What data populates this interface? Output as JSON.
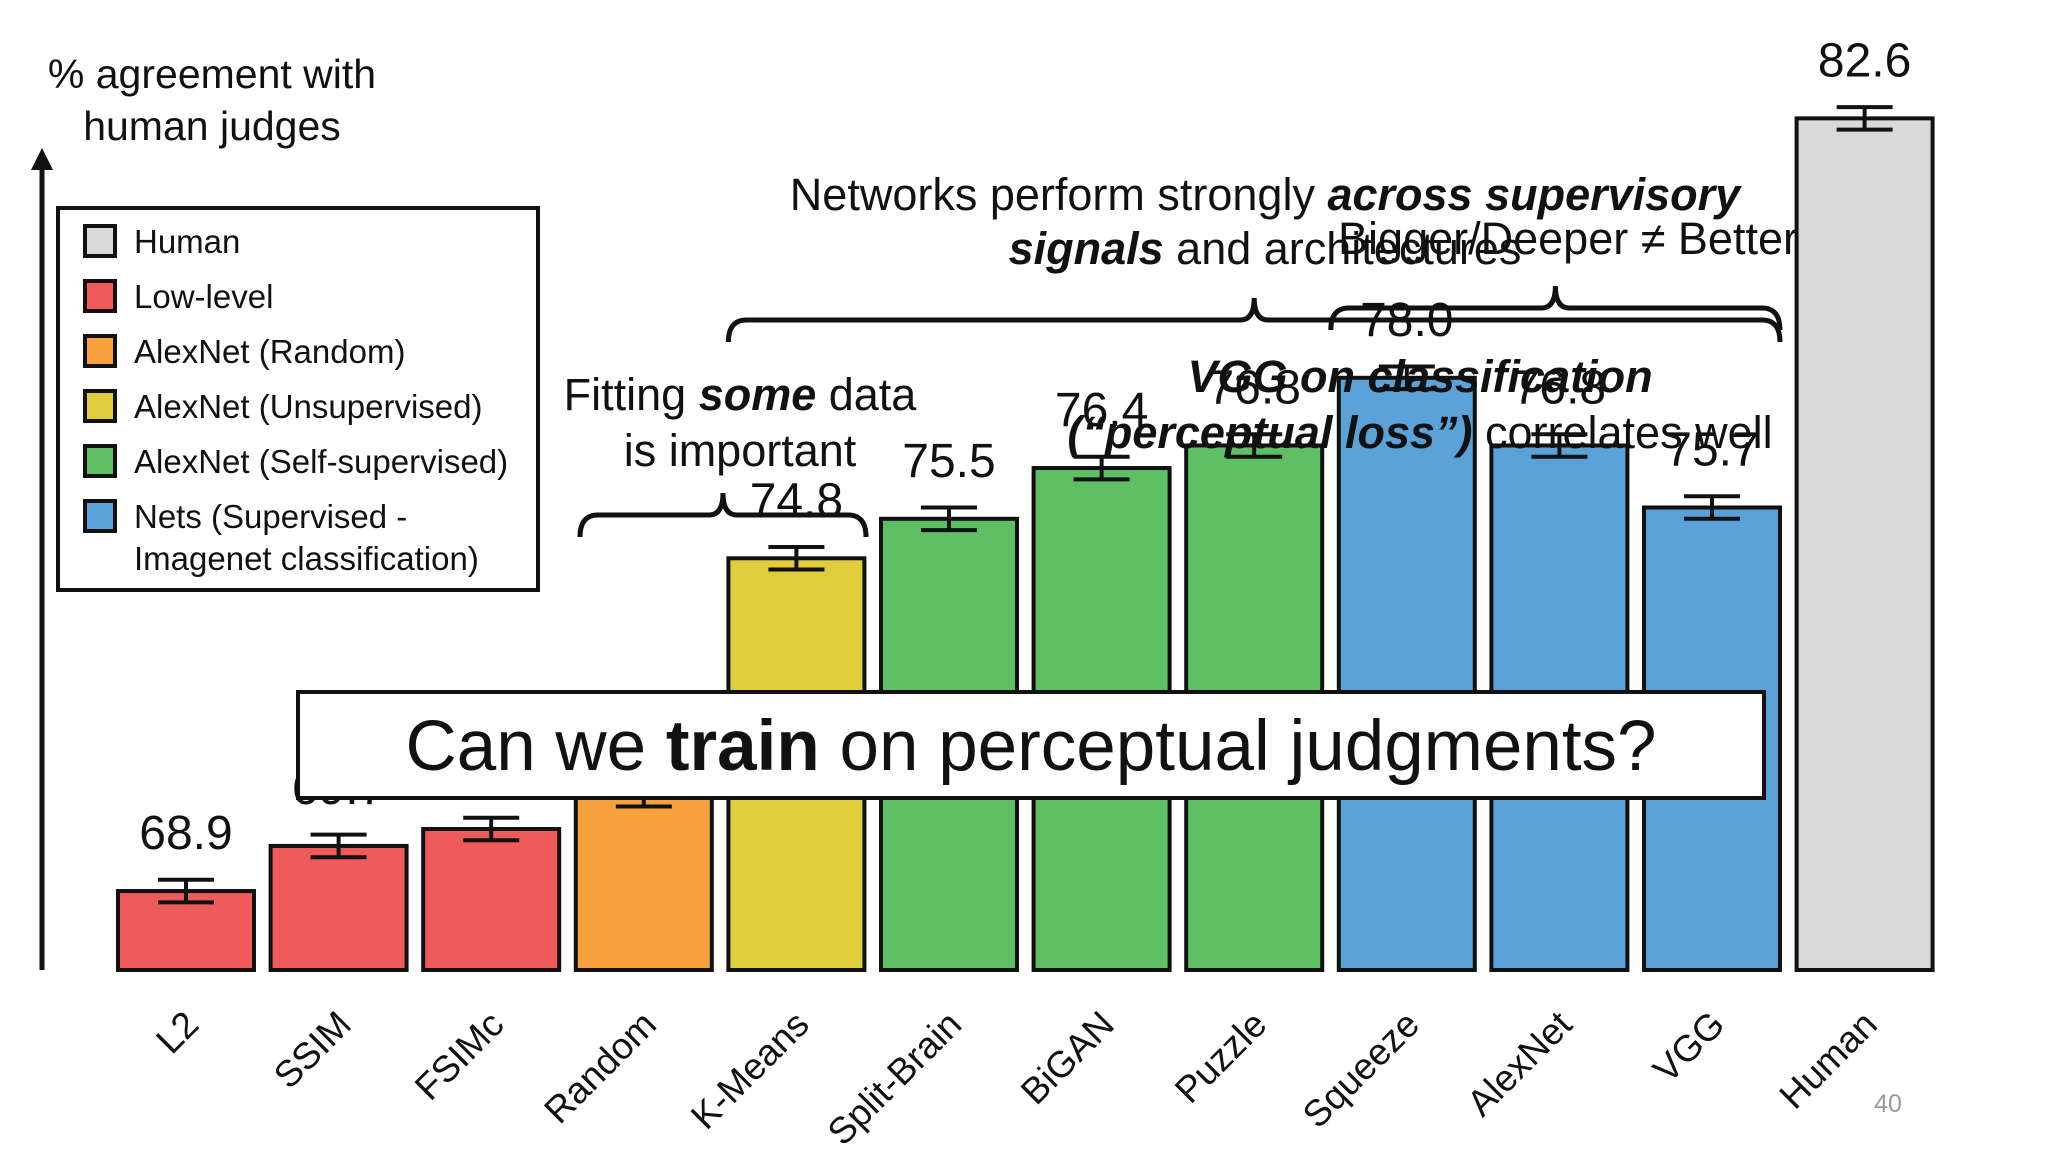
{
  "chart_data": {
    "type": "bar",
    "ylabel": [
      "% agreement with",
      "human judges"
    ],
    "ylim": [
      67.5,
      84
    ],
    "categories": [
      "L2",
      "SSIM",
      "FSIMc",
      "Random",
      "K-Means",
      "Split-Brain",
      "BiGAN",
      "Puzzle",
      "Squeeze",
      "AlexNet",
      "VGG",
      "Human"
    ],
    "values": [
      68.9,
      69.7,
      70.0,
      70.6,
      74.8,
      75.5,
      76.4,
      76.8,
      78.0,
      76.8,
      75.7,
      82.6
    ],
    "value_labels": [
      "68.9",
      "69.7",
      "70.0",
      "70.6",
      "74.8",
      "75.5",
      "76.4",
      "76.8",
      "78.0",
      "76.8",
      "75.7",
      "82.6"
    ],
    "error_bars": [
      0.2,
      0.2,
      0.2,
      0.2,
      0.2,
      0.2,
      0.2,
      0.2,
      0.2,
      0.2,
      0.2,
      0.2
    ],
    "groups": [
      "low-level",
      "low-level",
      "low-level",
      "alexnet-random",
      "alexnet-unsupervised",
      "alexnet-self-supervised",
      "alexnet-self-supervised",
      "alexnet-self-supervised",
      "nets-supervised",
      "nets-supervised",
      "nets-supervised",
      "human"
    ],
    "group_colors": {
      "human": "#d9d9d9",
      "low-level": "#ef5a5a",
      "alexnet-random": "#f8a13c",
      "alexnet-unsupervised": "#dfcd3c",
      "alexnet-self-supervised": "#5fbf64",
      "nets-supervised": "#5aa2d8"
    },
    "legend": {
      "placement": "top-left",
      "entries": [
        {
          "label": "Human",
          "group": "human"
        },
        {
          "label": "Low-level",
          "group": "low-level"
        },
        {
          "label": "AlexNet (Random)",
          "group": "alexnet-random"
        },
        {
          "label": "AlexNet (Unsupervised)",
          "group": "alexnet-unsupervised"
        },
        {
          "label": "AlexNet (Self-supervised)",
          "group": "alexnet-self-supervised"
        },
        {
          "label": [
            "Nets (Supervised -",
            "Imagenet classification)"
          ],
          "group": "nets-supervised"
        }
      ]
    },
    "grid": false,
    "annotations": {
      "fitting": {
        "lines": [
          [
            {
              "t": "Fitting ",
              "b": false
            },
            {
              "t": "some",
              "b": true
            },
            {
              "t": " data",
              "b": false
            }
          ],
          [
            {
              "t": "is important",
              "b": false
            }
          ]
        ],
        "brace_span": [
          "K-Means",
          "K-Means"
        ]
      },
      "networks": {
        "lines": [
          [
            {
              "t": "Networks perform strongly ",
              "b": false
            },
            {
              "t": "across supervisory",
              "b": true
            }
          ],
          [
            {
              "t": "signals",
              "b": true
            },
            {
              "t": " and architectures",
              "b": false
            }
          ]
        ],
        "brace_span": [
          "K-Means",
          "VGG"
        ]
      },
      "bigger": {
        "lines": [
          [
            {
              "t": "Bigger/Deeper ≠ Better",
              "b": false
            }
          ]
        ],
        "brace_span": [
          "Squeeze",
          "VGG"
        ]
      },
      "vgg": {
        "lines": [
          [
            {
              "t": "VGG on classification",
              "b": true
            }
          ],
          [
            {
              "t": "(“perceptual loss”)",
              "b": true
            },
            {
              "t": " correlates well",
              "b": false
            }
          ]
        ]
      }
    }
  },
  "banner": {
    "prefix": "Can we ",
    "bold": "train",
    "suffix": " on perceptual judgments?"
  },
  "slide_number": "40"
}
